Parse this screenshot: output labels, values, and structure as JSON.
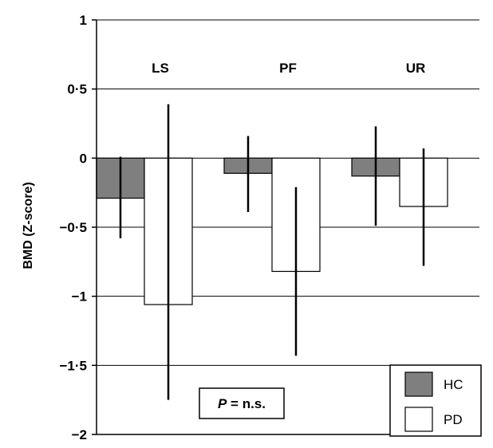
{
  "chart_data": {
    "type": "bar",
    "ylabel": "BMD (Z-score)",
    "ylim": [
      -2,
      1
    ],
    "yticks": [
      {
        "value": 1,
        "label": "1"
      },
      {
        "value": 0.5,
        "label": "0·5"
      },
      {
        "value": 0,
        "label": "0"
      },
      {
        "value": -0.5,
        "label": "−0·5"
      },
      {
        "value": -1,
        "label": "−1"
      },
      {
        "value": -1.5,
        "label": "−1·5"
      },
      {
        "value": -2,
        "label": "−2"
      }
    ],
    "grid": true,
    "categories": [
      "LS",
      "PF",
      "UR"
    ],
    "series": [
      {
        "name": "HC",
        "color": "#7f7f7f",
        "values": [
          -0.29,
          -0.11,
          -0.13
        ],
        "err_low": [
          -0.58,
          -0.39,
          -0.49
        ],
        "err_high": [
          0.01,
          0.16,
          0.23
        ]
      },
      {
        "name": "PD",
        "color": "#ffffff",
        "values": [
          -1.06,
          -0.82,
          -0.35
        ],
        "err_low": [
          -1.75,
          -1.43,
          -0.78
        ],
        "err_high": [
          0.39,
          -0.21,
          0.07
        ]
      }
    ],
    "legend_position": "bottom-right",
    "annotation": {
      "italic": "P",
      "text": " = n.s."
    }
  }
}
